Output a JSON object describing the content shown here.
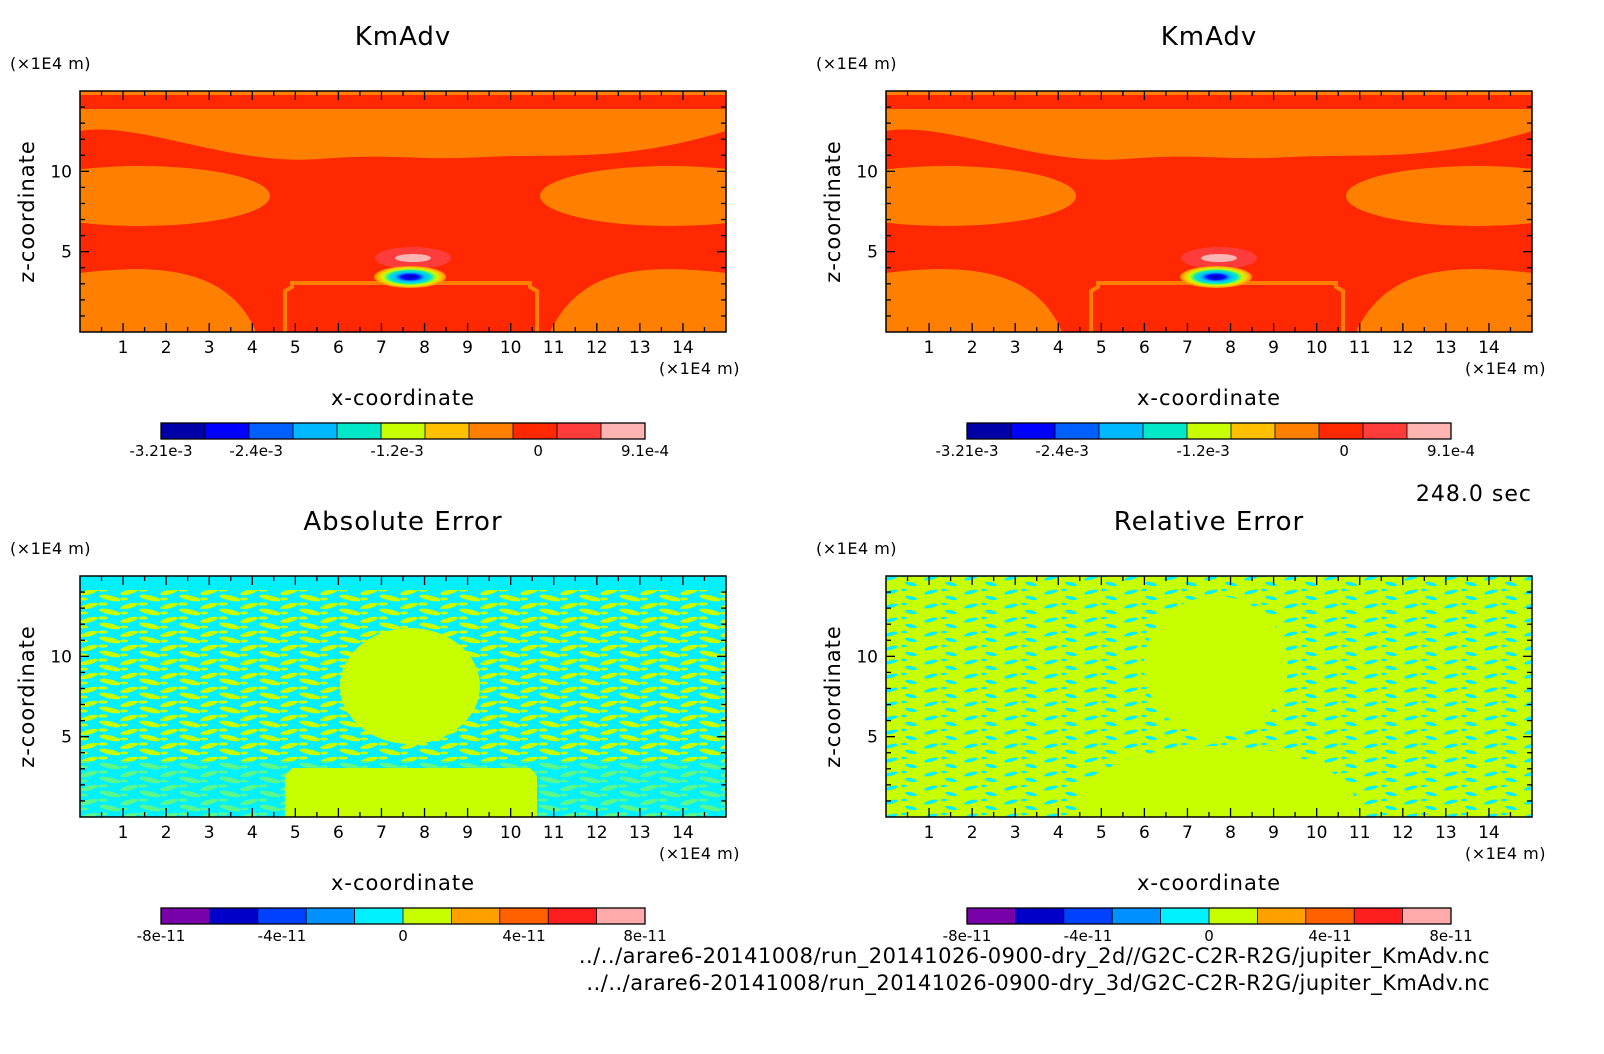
{
  "time_label": "248.0 sec",
  "footer": {
    "line1": "../../arare6-20141008/run_20141026-0900-dry_2d//G2C-C2R-R2G/jupiter_KmAdv.nc",
    "line2": "../../arare6-20141008/run_20141026-0900-dry_3d/G2C-C2R-R2G/jupiter_KmAdv.nc"
  },
  "chart_data": [
    {
      "type": "heatmap",
      "title": "KmAdv",
      "xlabel": "x-coordinate",
      "ylabel": "z-coordinate",
      "x_unit": "(×1E4 m)",
      "y_unit": "(×1E4 m)",
      "xlim": [
        0,
        15
      ],
      "ylim": [
        0,
        15
      ],
      "x_ticks": [
        1,
        2,
        3,
        4,
        5,
        6,
        7,
        8,
        9,
        10,
        11,
        12,
        13,
        14
      ],
      "y_ticks": [
        5,
        10
      ],
      "colorbar": {
        "colors": [
          "#0000a8",
          "#0000ff",
          "#0060ff",
          "#00b8ff",
          "#00e8c8",
          "#c8ff00",
          "#ffc000",
          "#ff8000",
          "#ff2800",
          "#ff3c3c",
          "#ffb4b4"
        ],
        "tick_labels": [
          "-3.21e-3",
          "-2.4e-3",
          "-1.2e-3",
          "0",
          "9.1e-4"
        ],
        "tick_values": [
          -0.00321,
          -0.0024,
          -0.0012,
          0,
          0.00091
        ]
      }
    },
    {
      "type": "heatmap",
      "title": "KmAdv",
      "xlabel": "x-coordinate",
      "ylabel": "z-coordinate",
      "x_unit": "(×1E4 m)",
      "y_unit": "(×1E4 m)",
      "xlim": [
        0,
        15
      ],
      "ylim": [
        0,
        15
      ],
      "x_ticks": [
        1,
        2,
        3,
        4,
        5,
        6,
        7,
        8,
        9,
        10,
        11,
        12,
        13,
        14
      ],
      "y_ticks": [
        5,
        10
      ],
      "colorbar": {
        "colors": [
          "#0000a8",
          "#0000ff",
          "#0060ff",
          "#00b8ff",
          "#00e8c8",
          "#c8ff00",
          "#ffc000",
          "#ff8000",
          "#ff2800",
          "#ff3c3c",
          "#ffb4b4"
        ],
        "tick_labels": [
          "-3.21e-3",
          "-2.4e-3",
          "-1.2e-3",
          "0",
          "9.1e-4"
        ],
        "tick_values": [
          -0.00321,
          -0.0024,
          -0.0012,
          0,
          0.00091
        ]
      }
    },
    {
      "type": "heatmap",
      "title": "Absolute Error",
      "xlabel": "x-coordinate",
      "ylabel": "z-coordinate",
      "x_unit": "(×1E4 m)",
      "y_unit": "(×1E4 m)",
      "xlim": [
        0,
        15
      ],
      "ylim": [
        0,
        15
      ],
      "x_ticks": [
        1,
        2,
        3,
        4,
        5,
        6,
        7,
        8,
        9,
        10,
        11,
        12,
        13,
        14
      ],
      "y_ticks": [
        5,
        10
      ],
      "colorbar": {
        "colors": [
          "#7800a8",
          "#0000c8",
          "#0040ff",
          "#0090ff",
          "#00f0ff",
          "#c8ff00",
          "#ffa000",
          "#ff6000",
          "#ff1e1e",
          "#ffaaaa"
        ],
        "tick_labels": [
          "-8e-11",
          "-4e-11",
          "0",
          "4e-11",
          "8e-11"
        ],
        "tick_values": [
          -8e-11,
          -4e-11,
          0,
          4e-11,
          8e-11
        ]
      }
    },
    {
      "type": "heatmap",
      "title": "Relative Error",
      "xlabel": "x-coordinate",
      "ylabel": "z-coordinate",
      "x_unit": "(×1E4 m)",
      "y_unit": "(×1E4 m)",
      "xlim": [
        0,
        15
      ],
      "ylim": [
        0,
        15
      ],
      "x_ticks": [
        1,
        2,
        3,
        4,
        5,
        6,
        7,
        8,
        9,
        10,
        11,
        12,
        13,
        14
      ],
      "y_ticks": [
        5,
        10
      ],
      "colorbar": {
        "colors": [
          "#7800a8",
          "#0000c8",
          "#0040ff",
          "#0090ff",
          "#00f0ff",
          "#c8ff00",
          "#ffa000",
          "#ff6000",
          "#ff1e1e",
          "#ffaaaa"
        ],
        "tick_labels": [
          "-8e-11",
          "-4e-11",
          "0",
          "4e-11",
          "8e-11"
        ],
        "tick_values": [
          -8e-11,
          -4e-11,
          0,
          4e-11,
          8e-11
        ]
      }
    }
  ]
}
